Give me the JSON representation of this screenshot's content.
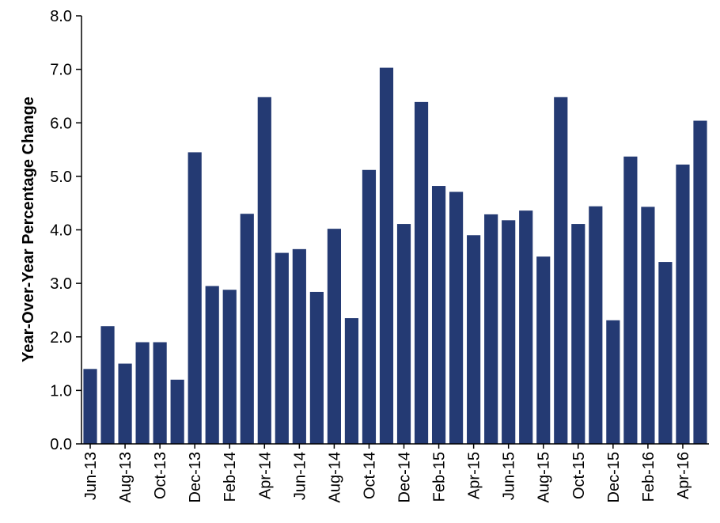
{
  "chart_data": {
    "type": "bar",
    "title": "",
    "xlabel": "",
    "ylabel": "Year-Over-Year  Percentage Change",
    "ylim": [
      0,
      8
    ],
    "yticks": [
      "0.0",
      "1.0",
      "2.0",
      "3.0",
      "4.0",
      "5.0",
      "6.0",
      "7.0",
      "8.0"
    ],
    "grid": false,
    "legend": "none",
    "bar_color": "#243a73",
    "categories": [
      "Jun-13",
      "Jul-13",
      "Aug-13",
      "Sep-13",
      "Oct-13",
      "Nov-13",
      "Dec-13",
      "Jan-14",
      "Feb-14",
      "Mar-14",
      "Apr-14",
      "May-14",
      "Jun-14",
      "Jul-14",
      "Aug-14",
      "Sep-14",
      "Oct-14",
      "Nov-14",
      "Dec-14",
      "Jan-15",
      "Feb-15",
      "Mar-15",
      "Apr-15",
      "May-15",
      "Jun-15",
      "Jul-15",
      "Aug-15",
      "Sep-15",
      "Oct-15",
      "Nov-15",
      "Dec-15",
      "Jan-16",
      "Feb-16",
      "Mar-16",
      "Apr-16",
      "May-16"
    ],
    "labeled_ticks": [
      "Jun-13",
      "Aug-13",
      "Oct-13",
      "Dec-13",
      "Feb-14",
      "Apr-14",
      "Jun-14",
      "Aug-14",
      "Oct-14",
      "Dec-14",
      "Feb-15",
      "Apr-15",
      "Jun-15",
      "Aug-15",
      "Oct-15",
      "Dec-15",
      "Feb-16",
      "Apr-16"
    ],
    "values": [
      1.4,
      2.2,
      1.5,
      1.9,
      1.9,
      1.2,
      5.45,
      2.95,
      2.88,
      4.3,
      6.48,
      3.57,
      3.64,
      2.84,
      4.02,
      2.35,
      5.12,
      7.03,
      4.11,
      6.39,
      4.82,
      4.71,
      3.9,
      4.29,
      4.18,
      4.36,
      3.5,
      6.48,
      4.11,
      4.44,
      2.31,
      5.37,
      4.43,
      3.4,
      5.22,
      6.04
    ]
  }
}
